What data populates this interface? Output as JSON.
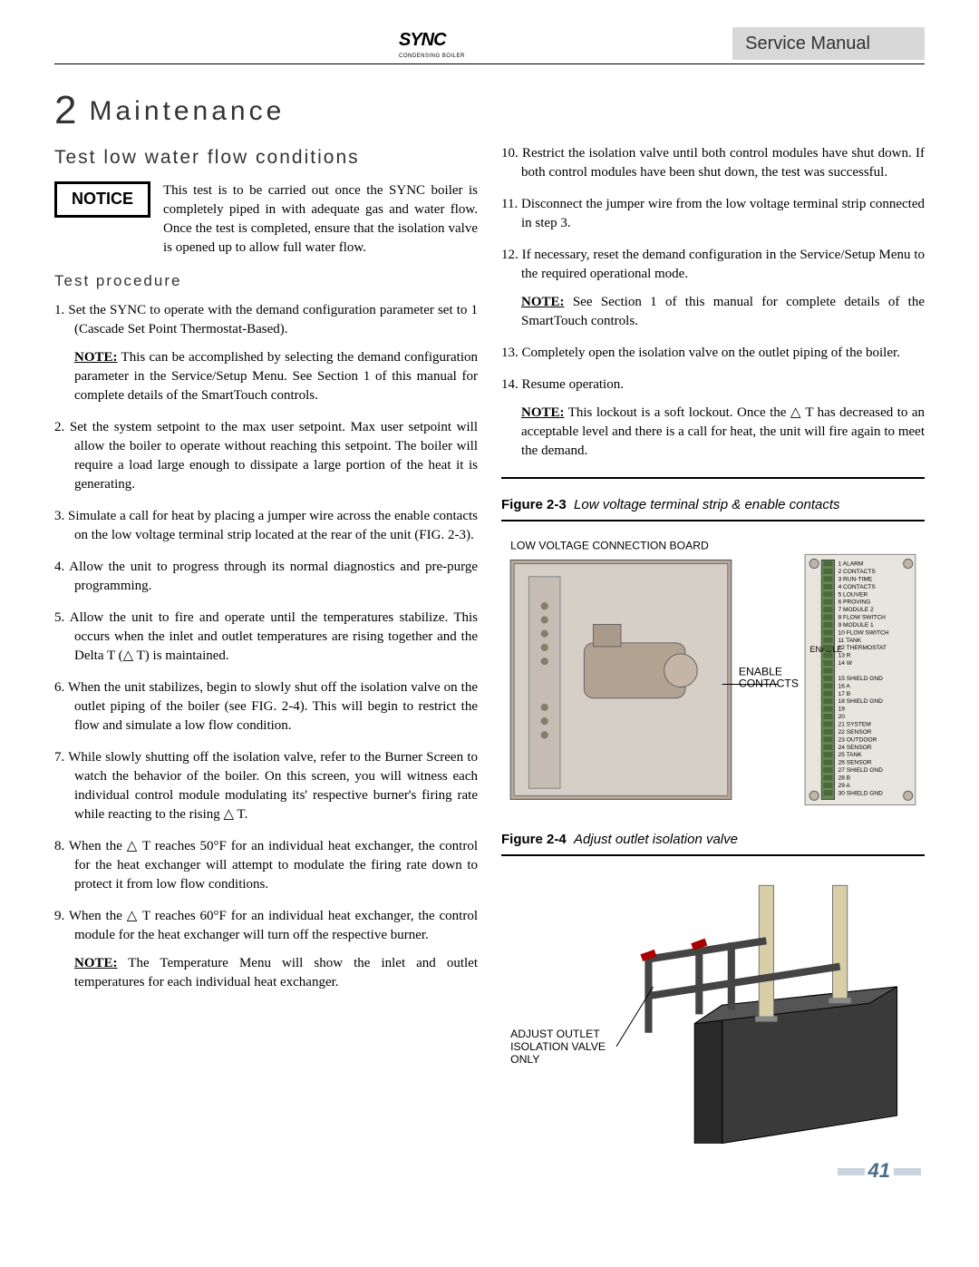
{
  "header": {
    "logo_main": "SYNC",
    "logo_sub": "CONDENSING BOILER",
    "right": "Service Manual"
  },
  "title": {
    "num": "2",
    "text": "Maintenance"
  },
  "subsection": "Test low water flow conditions",
  "notice": {
    "label": "NOTICE",
    "text": "This test is to be carried out once the SYNC boiler is completely piped in with adequate gas and water flow. Once the test is completed, ensure that the isolation valve is opened up to allow full water flow."
  },
  "proc_heading": "Test procedure",
  "left_steps": [
    {
      "n": "1.",
      "t": "Set the SYNC to operate with the demand configuration parameter set to 1 (Cascade Set Point Thermostat-Based).",
      "note": "This can be accomplished by selecting the demand configuration parameter in the Service/Setup Menu.  See Section 1 of this manual for complete details of the SmartTouch controls."
    },
    {
      "n": "2.",
      "t": "Set the system setpoint to the max user setpoint.  Max user setpoint will allow the boiler to operate without reaching this setpoint.  The boiler will require a load large enough to dissipate a large portion of the heat it is generating."
    },
    {
      "n": "3.",
      "t": "Simulate a call for heat by placing a jumper wire across the enable contacts on the low voltage terminal strip located at the rear of the unit (FIG. 2-3)."
    },
    {
      "n": "4.",
      "t": "Allow the unit to progress through its normal diagnostics and pre-purge programming."
    },
    {
      "n": "5.",
      "t": "Allow the unit to fire and operate until the temperatures stabilize.  This occurs when the inlet and outlet temperatures are rising together and the Delta T (△ T) is maintained."
    },
    {
      "n": "6.",
      "t": "When the unit stabilizes, begin to slowly shut off the isolation valve on the outlet piping of the boiler (see FIG. 2-4).  This will begin to restrict the flow and simulate a low flow condition."
    },
    {
      "n": "7.",
      "t": "While slowly shutting off the isolation valve, refer to the Burner Screen to watch the behavior of the boiler.  On this screen, you will witness each individual control module modulating its' respective burner's firing rate while reacting to the rising △ T."
    },
    {
      "n": "8.",
      "t": "When the △ T reaches 50°F for an individual heat exchanger, the control for the heat exchanger will attempt to modulate the firing rate down to protect it from low flow conditions."
    },
    {
      "n": "9.",
      "t": "When the △ T reaches 60°F for an individual heat exchanger, the control module for the heat exchanger will turn off the respective burner.",
      "note": "The Temperature Menu will show the inlet and outlet temperatures for each individual heat exchanger."
    }
  ],
  "right_steps": [
    {
      "n": "10.",
      "t": "Restrict the isolation valve until both control modules have shut down.   If both control modules have been shut down, the test was successful."
    },
    {
      "n": "11.",
      "t": "Disconnect the jumper wire from the low voltage terminal strip connected in step 3."
    },
    {
      "n": "12.",
      "t": "If necessary, reset the demand configuration in the Service/Setup Menu to the required operational mode.",
      "note": "See Section 1 of this manual for complete details of the SmartTouch controls."
    },
    {
      "n": "13.",
      "t": "Completely open the isolation valve on the outlet piping of the boiler."
    },
    {
      "n": "14.",
      "t": "Resume operation.",
      "note": "This lockout is a soft lockout. Once the △ T has decreased to an acceptable level and there is a call for heat, the unit will fire again to meet the demand."
    }
  ],
  "fig23": {
    "caption_bold": "Figure 2-3",
    "caption_ital": "Low voltage terminal strip & enable contacts",
    "label_board": "LOW VOLTAGE CONNECTION BOARD",
    "label_enable": "ENABLE CONTACTS",
    "terminals": [
      "1  ALARM",
      "2  CONTACTS",
      "3  RUN-TIME",
      "4  CONTACTS",
      "5  LOUVER",
      "6  PROVING",
      "7  MODULE 2",
      "8  FLOW SWITCH",
      "9  MODULE 1",
      "10 FLOW SWITCH",
      "11 TANK",
      "12 THERMOSTAT",
      "13 R",
      "14 W",
      "",
      "15 SHIELD GND",
      "16 A",
      "17 B",
      "18 SHIELD GND",
      "19",
      "20",
      "21 SYSTEM",
      "22 SENSOR",
      "23 OUTDOOR",
      "24 SENSOR",
      "25 TANK",
      "26 SENSOR",
      "27 SHIELD GND",
      "28 B",
      "29 A",
      "30 SHIELD GND"
    ],
    "enable_line": "ENABLE"
  },
  "fig24": {
    "caption_bold": "Figure 2-4",
    "caption_ital": "Adjust outlet isolation valve",
    "label": "ADJUST OUTLET ISOLATION VALVE ONLY"
  },
  "page": "41",
  "note_label": "NOTE:"
}
